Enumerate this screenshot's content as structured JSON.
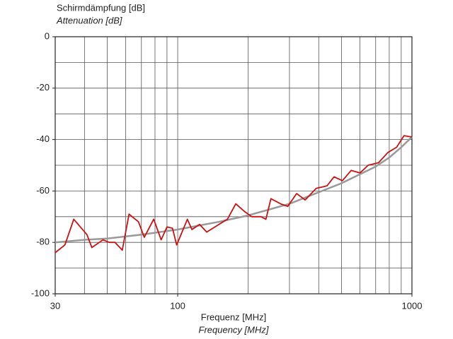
{
  "chart_data": {
    "type": "line",
    "ylabel": "Schirmdämpfung [dB]",
    "ylabel_en": "Attenuation [dB]",
    "xlabel": "Frequenz [MHz]",
    "xlabel_en": "Frequency [MHz]",
    "xscale": "log",
    "xlim": [
      30,
      1000
    ],
    "xticks": [
      30,
      100,
      1000
    ],
    "xgrid": [
      40,
      50,
      60,
      70,
      80,
      90,
      100,
      200,
      300,
      400,
      500,
      600,
      700,
      800,
      900
    ],
    "ylim": [
      -100,
      0
    ],
    "yticks": [
      -100,
      -80,
      -60,
      -40,
      -20,
      0
    ],
    "ygrid": [
      -90,
      -80,
      -70,
      -60,
      -50,
      -40,
      -30,
      -20,
      -10
    ],
    "grid": true,
    "series": [
      {
        "name": null,
        "color": "#999999",
        "x": [
          30,
          40,
          50,
          70,
          100,
          150,
          200,
          300,
          400,
          500,
          600,
          700,
          800,
          900,
          1000
        ],
        "values": [
          -80,
          -79,
          -78.5,
          -77,
          -75,
          -72,
          -69.5,
          -65,
          -60.5,
          -57,
          -53.5,
          -50.5,
          -47,
          -43,
          -39
        ]
      },
      {
        "name": null,
        "color": "#cc1111",
        "x": [
          30,
          33,
          36,
          41,
          43,
          48,
          51,
          54,
          58,
          62,
          68,
          72,
          79,
          85,
          90,
          95,
          99,
          110,
          115,
          124,
          133,
          150,
          163,
          177,
          193,
          207,
          227,
          238,
          250,
          275,
          295,
          322,
          350,
          390,
          434,
          465,
          505,
          550,
          600,
          650,
          720,
          790,
          860,
          925,
          1000
        ],
        "values": [
          -84,
          -81,
          -71,
          -77,
          -82,
          -79,
          -80,
          -80,
          -83,
          -69,
          -72,
          -78,
          -71,
          -79,
          -74,
          -74.5,
          -81,
          -71,
          -75,
          -73,
          -76,
          -73,
          -71,
          -65,
          -68,
          -70,
          -70,
          -71,
          -63,
          -65,
          -66,
          -61,
          -63.5,
          -59,
          -58,
          -54.5,
          -56,
          -52,
          -53,
          -50,
          -49,
          -45,
          -43,
          -38.5,
          -39
        ]
      }
    ]
  }
}
